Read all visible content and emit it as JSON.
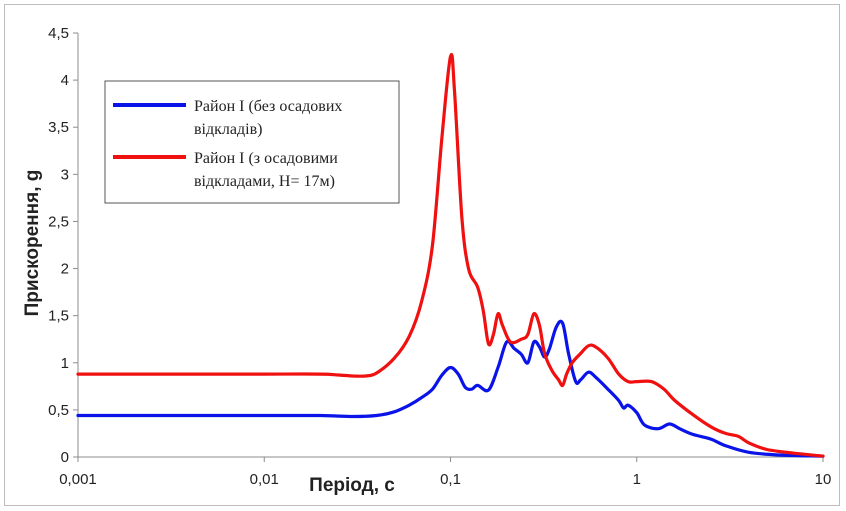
{
  "chart_data": {
    "type": "line",
    "xlabel": "Період, с",
    "ylabel": "Прискорення, g",
    "xscale": "log",
    "xlim": [
      0.001,
      10
    ],
    "ylim": [
      0,
      4.5
    ],
    "x_ticks": [
      "0,001",
      "0,01",
      "0,1",
      "1",
      "10"
    ],
    "x_tick_values": [
      0.001,
      0.01,
      0.1,
      1,
      10
    ],
    "y_ticks": [
      "0",
      "0,5",
      "1",
      "1,5",
      "2",
      "2,5",
      "3",
      "3,5",
      "4",
      "4,5"
    ],
    "y_tick_values": [
      0,
      0.5,
      1,
      1.5,
      2,
      2.5,
      3,
      3.5,
      4,
      4.5
    ],
    "grid": false,
    "legend_position": "top-left",
    "series": [
      {
        "name_lines": [
          "Район I (без осадових",
          "відкладів)"
        ],
        "color": "#0a14e8",
        "points": [
          [
            0.001,
            0.44
          ],
          [
            0.002,
            0.44
          ],
          [
            0.005,
            0.44
          ],
          [
            0.01,
            0.44
          ],
          [
            0.02,
            0.44
          ],
          [
            0.03,
            0.43
          ],
          [
            0.04,
            0.44
          ],
          [
            0.05,
            0.48
          ],
          [
            0.06,
            0.55
          ],
          [
            0.07,
            0.63
          ],
          [
            0.08,
            0.72
          ],
          [
            0.09,
            0.87
          ],
          [
            0.1,
            0.95
          ],
          [
            0.11,
            0.88
          ],
          [
            0.12,
            0.74
          ],
          [
            0.13,
            0.72
          ],
          [
            0.14,
            0.76
          ],
          [
            0.16,
            0.71
          ],
          [
            0.18,
            0.95
          ],
          [
            0.2,
            1.22
          ],
          [
            0.22,
            1.15
          ],
          [
            0.24,
            1.09
          ],
          [
            0.26,
            1.0
          ],
          [
            0.28,
            1.22
          ],
          [
            0.3,
            1.17
          ],
          [
            0.32,
            1.06
          ],
          [
            0.34,
            1.15
          ],
          [
            0.37,
            1.38
          ],
          [
            0.4,
            1.42
          ],
          [
            0.43,
            1.1
          ],
          [
            0.47,
            0.8
          ],
          [
            0.5,
            0.82
          ],
          [
            0.55,
            0.9
          ],
          [
            0.6,
            0.85
          ],
          [
            0.7,
            0.72
          ],
          [
            0.8,
            0.6
          ],
          [
            0.85,
            0.52
          ],
          [
            0.9,
            0.55
          ],
          [
            1.0,
            0.47
          ],
          [
            1.1,
            0.34
          ],
          [
            1.3,
            0.3
          ],
          [
            1.5,
            0.35
          ],
          [
            1.7,
            0.3
          ],
          [
            2.0,
            0.24
          ],
          [
            2.5,
            0.19
          ],
          [
            3.0,
            0.12
          ],
          [
            4.0,
            0.05
          ],
          [
            6.0,
            0.02
          ],
          [
            10,
            0.01
          ]
        ]
      },
      {
        "name_lines": [
          "Район I (з осадовими",
          "відкладами, H= 17м)"
        ],
        "color": "#f01010",
        "points": [
          [
            0.001,
            0.88
          ],
          [
            0.002,
            0.88
          ],
          [
            0.005,
            0.88
          ],
          [
            0.01,
            0.88
          ],
          [
            0.02,
            0.88
          ],
          [
            0.025,
            0.87
          ],
          [
            0.03,
            0.86
          ],
          [
            0.035,
            0.86
          ],
          [
            0.04,
            0.89
          ],
          [
            0.05,
            1.05
          ],
          [
            0.06,
            1.28
          ],
          [
            0.07,
            1.65
          ],
          [
            0.08,
            2.25
          ],
          [
            0.09,
            3.4
          ],
          [
            0.1,
            4.25
          ],
          [
            0.105,
            3.9
          ],
          [
            0.115,
            2.55
          ],
          [
            0.125,
            2.0
          ],
          [
            0.14,
            1.8
          ],
          [
            0.15,
            1.55
          ],
          [
            0.16,
            1.2
          ],
          [
            0.17,
            1.3
          ],
          [
            0.18,
            1.52
          ],
          [
            0.19,
            1.4
          ],
          [
            0.21,
            1.22
          ],
          [
            0.24,
            1.25
          ],
          [
            0.26,
            1.3
          ],
          [
            0.28,
            1.52
          ],
          [
            0.3,
            1.4
          ],
          [
            0.32,
            1.1
          ],
          [
            0.35,
            0.92
          ],
          [
            0.38,
            0.82
          ],
          [
            0.4,
            0.76
          ],
          [
            0.42,
            0.88
          ],
          [
            0.45,
            1.0
          ],
          [
            0.5,
            1.1
          ],
          [
            0.55,
            1.18
          ],
          [
            0.6,
            1.17
          ],
          [
            0.7,
            1.05
          ],
          [
            0.8,
            0.88
          ],
          [
            0.9,
            0.8
          ],
          [
            1.0,
            0.8
          ],
          [
            1.2,
            0.8
          ],
          [
            1.4,
            0.72
          ],
          [
            1.6,
            0.6
          ],
          [
            2.0,
            0.45
          ],
          [
            2.5,
            0.32
          ],
          [
            3.0,
            0.25
          ],
          [
            3.5,
            0.22
          ],
          [
            4.0,
            0.15
          ],
          [
            5.0,
            0.08
          ],
          [
            7.0,
            0.04
          ],
          [
            10,
            0.01
          ]
        ]
      }
    ]
  }
}
